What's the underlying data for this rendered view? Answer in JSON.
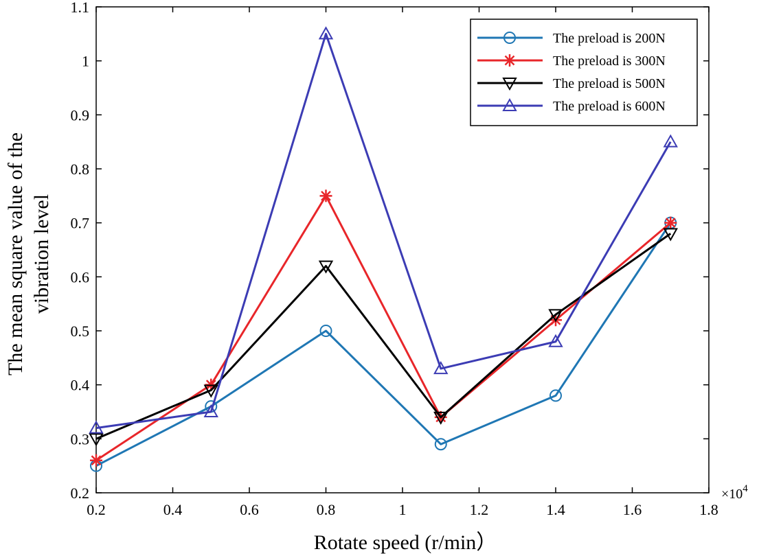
{
  "chart_data": {
    "type": "line",
    "xlabel": "Rotate speed (r/min）",
    "ylabel_line1": "The mean square value of the",
    "ylabel_line2": "vibration level",
    "x_multiplier": "×10",
    "x_exponent": "4",
    "x": [
      0.2,
      0.5,
      0.8,
      1.1,
      1.4,
      1.7
    ],
    "xlim": [
      0.2,
      1.8
    ],
    "ylim": [
      0.2,
      1.1
    ],
    "xticks": [
      0.2,
      0.4,
      0.6,
      0.8,
      1.0,
      1.2,
      1.4,
      1.6,
      1.8
    ],
    "xtick_labels": [
      "0.2",
      "0.4",
      "0.6",
      "0.8",
      "1",
      "1.2",
      "1.4",
      "1.6",
      "1.8"
    ],
    "yticks": [
      0.2,
      0.3,
      0.4,
      0.5,
      0.6,
      0.7,
      0.8,
      0.9,
      1.0,
      1.1
    ],
    "ytick_labels": [
      "0.2",
      "0.3",
      "0.4",
      "0.5",
      "0.6",
      "0.7",
      "0.8",
      "0.9",
      "1",
      "1.1"
    ],
    "grid": false,
    "legend_position": "top-right",
    "series": [
      {
        "name": "The preload is 200N",
        "color": "#1f77b4",
        "marker": "circle",
        "values": [
          0.25,
          0.36,
          0.5,
          0.29,
          0.38,
          0.7
        ]
      },
      {
        "name": "The preload is 300N",
        "color": "#e8262a",
        "marker": "asterisk",
        "values": [
          0.26,
          0.4,
          0.75,
          0.34,
          0.52,
          0.7
        ]
      },
      {
        "name": "The preload is 500N",
        "color": "#000000",
        "marker": "triangle-down",
        "values": [
          0.3,
          0.39,
          0.62,
          0.34,
          0.53,
          0.68
        ]
      },
      {
        "name": "The preload is 600N",
        "color": "#3c3cb4",
        "marker": "triangle-up",
        "values": [
          0.32,
          0.35,
          1.05,
          0.43,
          0.48,
          0.85
        ]
      }
    ]
  }
}
